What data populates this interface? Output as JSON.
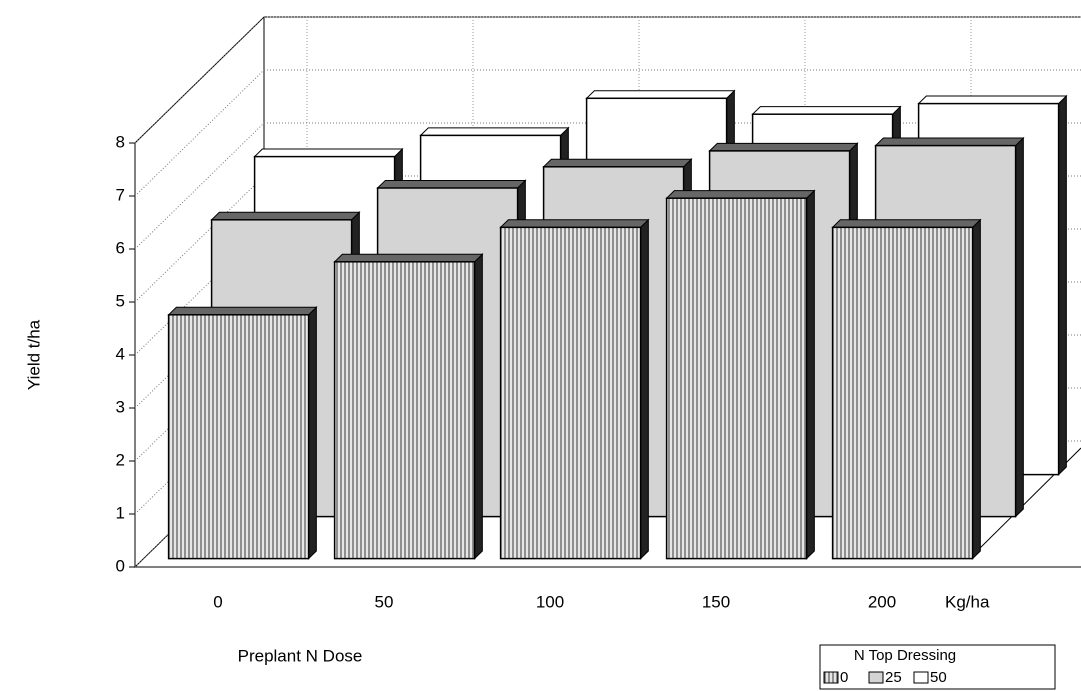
{
  "chart_data": {
    "type": "bar3d",
    "categories": [
      "0",
      "50",
      "100",
      "150",
      "200"
    ],
    "x_label": "Preplant  N Dose",
    "x_unit": "Kg/ha",
    "y_label": "Yield  t/ha",
    "ylim": [
      0,
      8
    ],
    "yticks": [
      0,
      1,
      2,
      3,
      4,
      5,
      6,
      7,
      8
    ],
    "grid": true,
    "legend": {
      "title": "N Top Dressing",
      "position": "bottom-right"
    },
    "series": [
      {
        "name": "0",
        "color": "#9a9a9a",
        "values": [
          4.6,
          5.6,
          6.25,
          6.8,
          6.25
        ]
      },
      {
        "name": "25",
        "color": "#d4d4d4",
        "values": [
          5.6,
          6.2,
          6.6,
          6.9,
          7.0
        ]
      },
      {
        "name": "50",
        "color": "#ffffff",
        "values": [
          6.0,
          6.4,
          7.1,
          6.8,
          7.0
        ]
      }
    ]
  }
}
